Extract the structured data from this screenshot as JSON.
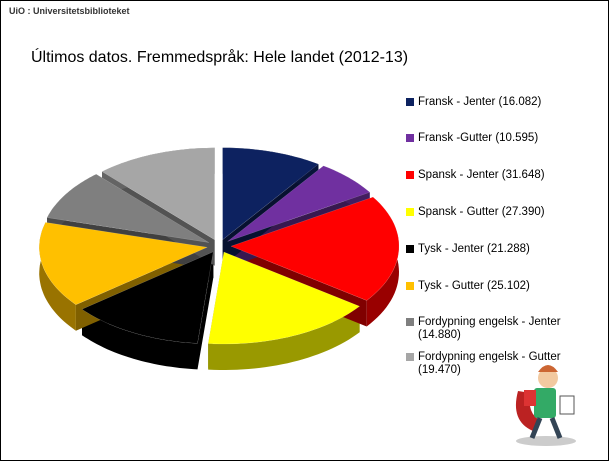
{
  "header": {
    "brand": "UiO : Universitetsbiblioteket"
  },
  "chart_data": {
    "type": "pie",
    "title": "Últimos datos. Fremmedspråk: Hele landet (2012-13)",
    "categories": [
      "Fransk - Jenter (16.082)",
      "Fransk -Gutter (10.595)",
      "Spansk - Jenter (31.648)",
      "Spansk - Gutter (27.390)",
      "Tysk - Jenter (21.288)",
      "Tysk - Gutter (25.102)",
      "Fordypning engelsk - Jenter (14.880)",
      "Fordypning engelsk - Gutter (19.470)"
    ],
    "values": [
      16082,
      10595,
      31648,
      27390,
      21288,
      25102,
      14880,
      19470
    ],
    "colors": [
      "#0d2260",
      "#7030a0",
      "#ff0000",
      "#ffff00",
      "#000000",
      "#ffc000",
      "#7f7f7f",
      "#a6a6a6"
    ],
    "legend": "right"
  }
}
